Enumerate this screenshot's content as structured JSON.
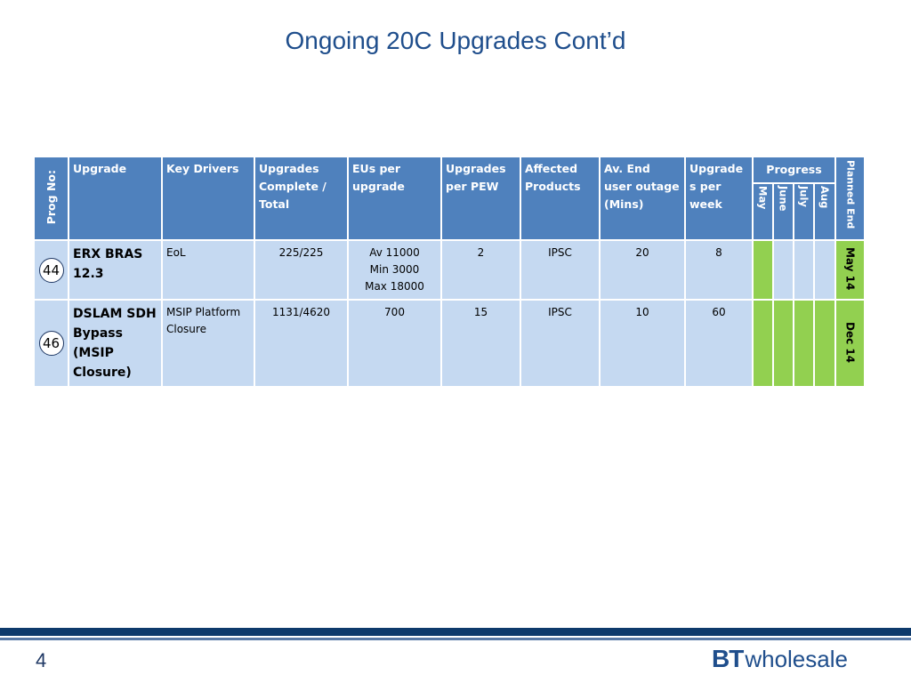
{
  "title": "Ongoing 20C Upgrades Cont’d",
  "headers": {
    "prog_no": "Prog No:",
    "upgrade": "Upgrade",
    "key_drivers": "Key Drivers",
    "complete_total": "Upgrades Complete / Total",
    "eus_per_upgrade": "EUs per upgrade",
    "upgrades_per_pew": "Upgrades per PEW",
    "affected_products": "Affected Products",
    "av_outage": "Av. End user outage (Mins)",
    "upgrades_per_week": "Upgrade s per week",
    "progress": "Progress",
    "planned_end": "Planned End",
    "months": [
      "May",
      "June",
      "July",
      "Aug"
    ]
  },
  "rows": [
    {
      "prog_no": "44",
      "upgrade": "ERX BRAS 12.3",
      "key_drivers": "EoL",
      "complete_total": "225/225",
      "eus_lines": [
        "Av 11000",
        "Min 3000",
        "Max 18000"
      ],
      "upgrades_per_pew": "2",
      "affected_products": "IPSC",
      "av_outage": "20",
      "upgrades_per_week": "8",
      "progress_done": [
        true,
        false,
        false,
        false
      ],
      "planned_end": "May 14"
    },
    {
      "prog_no": "46",
      "upgrade": "DSLAM SDH Bypass (MSIP Closure)",
      "key_drivers": "MSIP Platform Closure",
      "complete_total": "1131/4620",
      "eus_lines": [
        "700"
      ],
      "upgrades_per_pew": "15",
      "affected_products": "IPSC",
      "av_outage": "10",
      "upgrades_per_week": "60",
      "progress_done": [
        true,
        true,
        true,
        true
      ],
      "planned_end": "Dec 14"
    }
  ],
  "colors": {
    "header_blue": "#4f81bd",
    "row_light_blue": "#c5d9f1",
    "progress_green": "#92d050",
    "title_blue": "#1f4e8c"
  },
  "footer": {
    "page_number": "4",
    "logo_bt": "BT",
    "logo_wholesale": "wholesale"
  }
}
